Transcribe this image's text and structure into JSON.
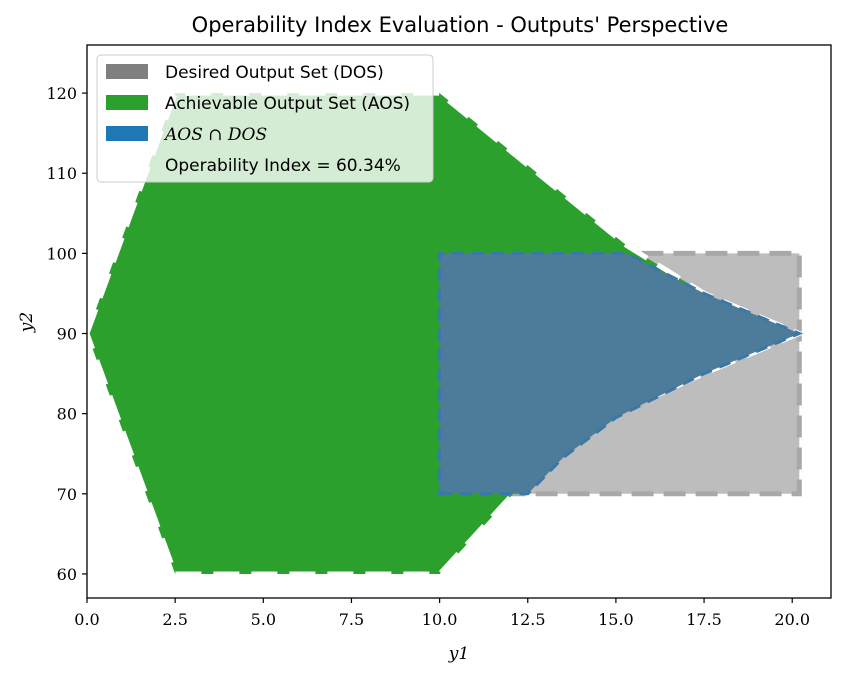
{
  "chart_data": {
    "type": "area",
    "title": "Operability Index Evaluation - Outputs' Perspective",
    "xlabel": "y1",
    "ylabel": "y2",
    "xlim": [
      0,
      21.1
    ],
    "ylim": [
      57,
      126
    ],
    "xticks": [
      "0.0",
      "2.5",
      "5.0",
      "7.5",
      "10.0",
      "12.5",
      "15.0",
      "17.5",
      "20.0"
    ],
    "yticks": [
      "60",
      "70",
      "80",
      "90",
      "100",
      "110",
      "120"
    ],
    "grid": false,
    "legend_position": "top-left",
    "legend": [
      {
        "label": "Desired Output Set (DOS)",
        "color": "#7f7f7f"
      },
      {
        "label": "Achievable Output Set (AOS)",
        "color": "#2ca02c"
      },
      {
        "label": "AOS ∩ DOS",
        "color": "#1f77b4"
      },
      {
        "label": "Operability Index = 60.34%",
        "color": "none"
      }
    ],
    "series": [
      {
        "name": "Desired Output Set (DOS)",
        "color": "#bdbdbd",
        "polygon": [
          [
            10,
            70
          ],
          [
            20.2,
            70
          ],
          [
            20.2,
            100
          ],
          [
            10,
            100
          ]
        ]
      },
      {
        "name": "Achievable Output Set (AOS)",
        "color": "#2ca02c",
        "polygon": [
          [
            0,
            90
          ],
          [
            2.5,
            120
          ],
          [
            10,
            120
          ],
          [
            12.5,
            111
          ],
          [
            15.3,
            101
          ],
          [
            17.5,
            95
          ],
          [
            20.2,
            90
          ],
          [
            17.5,
            85
          ],
          [
            15,
            80
          ],
          [
            12.5,
            72
          ],
          [
            10,
            60
          ],
          [
            2.5,
            60
          ]
        ]
      },
      {
        "name": "AOS ∩ DOS",
        "color": "#4c7c99",
        "polygon": [
          [
            10,
            70
          ],
          [
            12.5,
            70
          ],
          [
            13.5,
            74.5
          ],
          [
            15,
            79.5
          ],
          [
            17.5,
            85
          ],
          [
            20.2,
            90
          ],
          [
            17.5,
            95
          ],
          [
            15.3,
            100
          ],
          [
            10,
            100
          ]
        ]
      }
    ]
  }
}
